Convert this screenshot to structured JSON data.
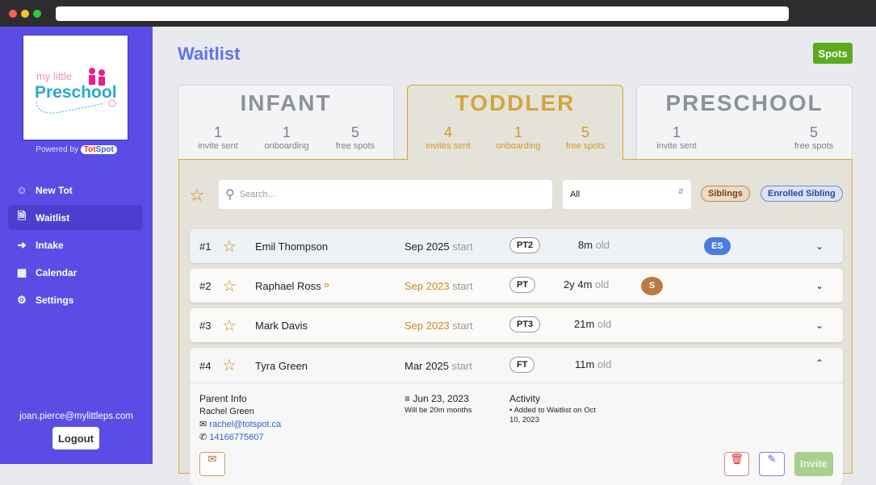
{
  "sidebar": {
    "powered_by": "Powered by",
    "brand_a": "Tot",
    "brand_b": "Spot",
    "logo_text": "my little Preschool",
    "items": [
      {
        "label": "New Tot",
        "icon": "user-plus-icon"
      },
      {
        "label": "Waitlist",
        "icon": "document-icon"
      },
      {
        "label": "Intake",
        "icon": "sign-in-icon"
      },
      {
        "label": "Calendar",
        "icon": "calendar-icon"
      },
      {
        "label": "Settings",
        "icon": "gear-icon"
      }
    ],
    "email": "joan.pierce@mylittleps.com",
    "logout": "Logout"
  },
  "header": {
    "title": "Waitlist",
    "spots_button": "Spots"
  },
  "tabs": [
    {
      "name": "INFANT",
      "stats": [
        {
          "n": "1",
          "l": "invite sent"
        },
        {
          "n": "1",
          "l": "onboarding"
        },
        {
          "n": "5",
          "l": "free spots"
        }
      ]
    },
    {
      "name": "TODDLER",
      "stats": [
        {
          "n": "4",
          "l": "invites sent"
        },
        {
          "n": "1",
          "l": "onboarding"
        },
        {
          "n": "5",
          "l": "free spots"
        }
      ]
    },
    {
      "name": "PRESCHOOL",
      "stats": [
        {
          "n": "1",
          "l": "invite sent"
        },
        {
          "n": "5",
          "l": "free spots"
        }
      ]
    }
  ],
  "filters": {
    "search_placeholder": "Search...",
    "select_value": "All",
    "siblings": "Siblings",
    "enrolled_sibling": "Enrolled Sibling"
  },
  "rows": [
    {
      "rank": "#1",
      "name": "Emil Thompson",
      "start": "Sep 2025",
      "start_suffix": "start",
      "program": "PT2",
      "age": "8m",
      "age_suffix": "old",
      "badge": "ES"
    },
    {
      "rank": "#2",
      "name": "Raphael Ross",
      "start": "Sep 2023",
      "start_suffix": "start",
      "program": "PT",
      "age": "2y 4m",
      "age_suffix": "old",
      "badge": "S"
    },
    {
      "rank": "#3",
      "name": "Mark Davis",
      "start": "Sep 2023",
      "start_suffix": "start",
      "program": "PT3",
      "age": "21m",
      "age_suffix": "old"
    },
    {
      "rank": "#4",
      "name": "Tyra Green",
      "start": "Mar 2025",
      "start_suffix": "start",
      "program": "FT",
      "age": "11m",
      "age_suffix": "old"
    }
  ],
  "details": {
    "parent_heading": "Parent Info",
    "parent_name": "Rachel Green",
    "email": "rachel@totspot.ca",
    "phone": "14166775607",
    "birthday": "Jun 23, 2023",
    "will_be": "Will be 20m months",
    "activity_heading": "Activity",
    "activity": [
      "Added to Waitlist on Oct 10, 2023"
    ],
    "invite": "Invite"
  },
  "colors": {
    "sidebar": "#5a4de6",
    "accent": "#d8a82e",
    "spots": "#5aab1e",
    "es_badge": "#4a7be0",
    "s_badge": "#b87a40"
  }
}
